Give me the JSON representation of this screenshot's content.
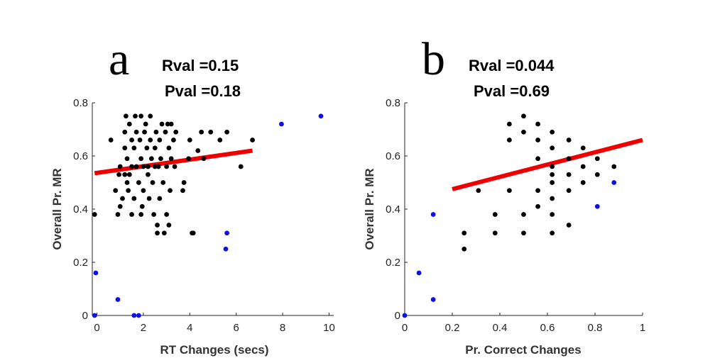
{
  "chart_data": [
    {
      "type": "scatter",
      "panel_label": "a",
      "stats": {
        "rval": "Rval =0.15",
        "pval": "Pval =0.18"
      },
      "xlabel": "RT Changes (secs)",
      "ylabel": "Overall Pr. MR",
      "xlim": [
        -0.2,
        10.2
      ],
      "ylim": [
        0,
        0.8
      ],
      "xticks": [
        0,
        2,
        4,
        6,
        8,
        10
      ],
      "xtick_labels": [
        "0",
        "2",
        "4",
        "6",
        "8",
        "10"
      ],
      "yticks": [
        0,
        0.2,
        0.4,
        0.6,
        0.8
      ],
      "ytick_labels": [
        "0",
        "0.2",
        "0.4",
        "0.6",
        "0.8"
      ],
      "regression": {
        "x": [
          -0.1,
          6.7
        ],
        "y": [
          0.535,
          0.62
        ],
        "color": "#ee0000"
      },
      "series": [
        {
          "name": "main",
          "color": "#000000",
          "points": [
            [
              -0.1,
              0.38
            ],
            [
              0.6,
              0.66
            ],
            [
              0.8,
              0.47
            ],
            [
              0.9,
              0.38
            ],
            [
              0.95,
              0.53
            ],
            [
              1.0,
              0.56
            ],
            [
              1.0,
              0.41
            ],
            [
              1.1,
              0.44
            ],
            [
              1.2,
              0.53
            ],
            [
              1.2,
              0.63
            ],
            [
              1.2,
              0.69
            ],
            [
              1.25,
              0.75
            ],
            [
              1.3,
              0.5
            ],
            [
              1.3,
              0.59
            ],
            [
              1.35,
              0.47
            ],
            [
              1.4,
              0.53
            ],
            [
              1.4,
              0.72
            ],
            [
              1.5,
              0.66
            ],
            [
              1.5,
              0.56
            ],
            [
              1.5,
              0.38
            ],
            [
              1.6,
              0.44
            ],
            [
              1.6,
              0.63
            ],
            [
              1.65,
              0.75
            ],
            [
              1.7,
              0.56
            ],
            [
              1.7,
              0.69
            ],
            [
              1.8,
              0.5
            ],
            [
              1.85,
              0.66
            ],
            [
              1.9,
              0.59
            ],
            [
              1.9,
              0.38
            ],
            [
              1.9,
              0.75
            ],
            [
              1.95,
              0.41
            ],
            [
              2.0,
              0.56
            ],
            [
              2.0,
              0.47
            ],
            [
              2.05,
              0.69
            ],
            [
              2.1,
              0.72
            ],
            [
              2.15,
              0.63
            ],
            [
              2.2,
              0.53
            ],
            [
              2.2,
              0.56
            ],
            [
              2.25,
              0.44
            ],
            [
              2.3,
              0.75
            ],
            [
              2.3,
              0.66
            ],
            [
              2.35,
              0.59
            ],
            [
              2.4,
              0.5
            ],
            [
              2.45,
              0.38
            ],
            [
              2.5,
              0.56
            ],
            [
              2.5,
              0.63
            ],
            [
              2.55,
              0.69
            ],
            [
              2.6,
              0.34
            ],
            [
              2.6,
              0.31
            ],
            [
              2.65,
              0.56
            ],
            [
              2.7,
              0.66
            ],
            [
              2.7,
              0.44
            ],
            [
              2.75,
              0.59
            ],
            [
              2.8,
              0.72
            ],
            [
              2.85,
              0.5
            ],
            [
              2.9,
              0.31
            ],
            [
              2.95,
              0.69
            ],
            [
              3.0,
              0.56
            ],
            [
              3.0,
              0.38
            ],
            [
              3.05,
              0.72
            ],
            [
              3.1,
              0.63
            ],
            [
              3.1,
              0.34
            ],
            [
              3.15,
              0.47
            ],
            [
              3.2,
              0.59
            ],
            [
              3.2,
              0.72
            ],
            [
              3.3,
              0.66
            ],
            [
              3.35,
              0.56
            ],
            [
              3.4,
              0.69
            ],
            [
              3.7,
              0.47
            ],
            [
              3.75,
              0.5
            ],
            [
              3.95,
              0.59
            ],
            [
              4.0,
              0.66
            ],
            [
              4.1,
              0.31
            ],
            [
              4.15,
              0.31
            ],
            [
              4.35,
              0.62
            ],
            [
              4.5,
              0.69
            ],
            [
              4.6,
              0.59
            ],
            [
              4.9,
              0.69
            ],
            [
              5.3,
              0.66
            ],
            [
              5.6,
              0.69
            ],
            [
              6.2,
              0.56
            ],
            [
              6.7,
              0.66
            ]
          ]
        },
        {
          "name": "outliers",
          "color": "#1010e0",
          "points": [
            [
              -0.1,
              0.0
            ],
            [
              -0.05,
              0.16
            ],
            [
              0.9,
              0.06
            ],
            [
              1.6,
              0.0
            ],
            [
              1.8,
              0.0
            ],
            [
              5.6,
              0.31
            ],
            [
              5.55,
              0.25
            ],
            [
              7.95,
              0.72
            ],
            [
              9.65,
              0.75
            ]
          ]
        }
      ]
    },
    {
      "type": "scatter",
      "panel_label": "b",
      "stats": {
        "rval": "Rval =0.044",
        "pval": "Pval =0.69"
      },
      "xlabel": "Pr. Correct Changes",
      "ylabel": "Overall Pr. MR",
      "xlim": [
        0,
        1
      ],
      "ylim": [
        0,
        0.8
      ],
      "xticks": [
        0,
        0.2,
        0.4,
        0.6,
        0.8,
        1
      ],
      "xtick_labels": [
        "0",
        "0.2",
        "0.4",
        "0.6",
        "0.8",
        "1"
      ],
      "yticks": [
        0,
        0.2,
        0.4,
        0.6,
        0.8
      ],
      "ytick_labels": [
        "0",
        "0.2",
        "0.4",
        "0.6",
        "0.8"
      ],
      "regression": {
        "x": [
          0.2,
          1.0
        ],
        "y": [
          0.475,
          0.66
        ],
        "color": "#ee0000"
      },
      "series": [
        {
          "name": "main",
          "color": "#000000",
          "points": [
            [
              0.25,
              0.31
            ],
            [
              0.25,
              0.25
            ],
            [
              0.31,
              0.47
            ],
            [
              0.38,
              0.31
            ],
            [
              0.38,
              0.38
            ],
            [
              0.44,
              0.72
            ],
            [
              0.44,
              0.66
            ],
            [
              0.44,
              0.47
            ],
            [
              0.5,
              0.75
            ],
            [
              0.5,
              0.69
            ],
            [
              0.5,
              0.38
            ],
            [
              0.5,
              0.31
            ],
            [
              0.56,
              0.72
            ],
            [
              0.56,
              0.66
            ],
            [
              0.56,
              0.59
            ],
            [
              0.56,
              0.47
            ],
            [
              0.56,
              0.41
            ],
            [
              0.62,
              0.69
            ],
            [
              0.62,
              0.63
            ],
            [
              0.62,
              0.56
            ],
            [
              0.62,
              0.53
            ],
            [
              0.62,
              0.5
            ],
            [
              0.62,
              0.44
            ],
            [
              0.62,
              0.38
            ],
            [
              0.62,
              0.31
            ],
            [
              0.69,
              0.66
            ],
            [
              0.69,
              0.59
            ],
            [
              0.69,
              0.53
            ],
            [
              0.69,
              0.47
            ],
            [
              0.69,
              0.34
            ],
            [
              0.75,
              0.63
            ],
            [
              0.75,
              0.56
            ],
            [
              0.75,
              0.5
            ],
            [
              0.81,
              0.59
            ],
            [
              0.81,
              0.53
            ],
            [
              0.88,
              0.56
            ]
          ]
        },
        {
          "name": "outliers",
          "color": "#1010e0",
          "points": [
            [
              0.0,
              0.0
            ],
            [
              0.06,
              0.16
            ],
            [
              0.12,
              0.38
            ],
            [
              0.12,
              0.06
            ],
            [
              0.81,
              0.41
            ],
            [
              0.88,
              0.5
            ]
          ]
        }
      ]
    }
  ]
}
